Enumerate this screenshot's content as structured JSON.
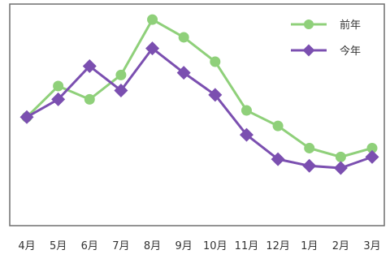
{
  "chart_data": {
    "type": "line",
    "title": "",
    "xlabel": "",
    "ylabel": "",
    "categories": [
      "4月",
      "5月",
      "6月",
      "7月",
      "8月",
      "9月",
      "10月",
      "11月",
      "12月",
      "1月",
      "2月",
      "3月"
    ],
    "ylim": [
      0,
      100
    ],
    "grid": false,
    "legend_position": "top-right",
    "series": [
      {
        "name": "前年",
        "marker": "circle",
        "color": "#8fd07a",
        "values": [
          49,
          63,
          57,
          68,
          93,
          85,
          74,
          52,
          45,
          35,
          31,
          35
        ]
      },
      {
        "name": "今年",
        "marker": "diamond",
        "color": "#7b4fb0",
        "values": [
          49,
          57,
          72,
          61,
          80,
          69,
          59,
          41,
          30,
          27,
          26,
          31
        ]
      }
    ]
  }
}
